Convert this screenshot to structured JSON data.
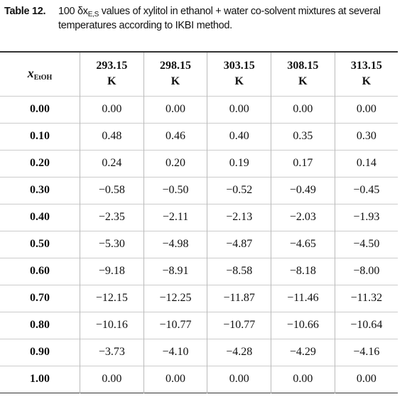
{
  "caption": {
    "label": "Table 12.",
    "prefix": "100 δx",
    "subscript": "E,S",
    "rest": " values of xylitol in ethanol + water co-solvent mixtures at several temperatures according to IKBI method."
  },
  "table": {
    "header": {
      "first": {
        "symbol": "x",
        "subscript": "EtOH"
      },
      "columns": [
        {
          "value": "293.15",
          "unit": "K"
        },
        {
          "value": "298.15",
          "unit": "K"
        },
        {
          "value": "303.15",
          "unit": "K"
        },
        {
          "value": "308.15",
          "unit": "K"
        },
        {
          "value": "313.15",
          "unit": "K"
        }
      ]
    },
    "rows": [
      [
        "0.00",
        "0.00",
        "0.00",
        "0.00",
        "0.00",
        "0.00"
      ],
      [
        "0.10",
        "0.48",
        "0.46",
        "0.40",
        "0.35",
        "0.30"
      ],
      [
        "0.20",
        "0.24",
        "0.20",
        "0.19",
        "0.17",
        "0.14"
      ],
      [
        "0.30",
        "−0.58",
        "−0.50",
        "−0.52",
        "−0.49",
        "−0.45"
      ],
      [
        "0.40",
        "−2.35",
        "−2.11",
        "−2.13",
        "−2.03",
        "−1.93"
      ],
      [
        "0.50",
        "−5.30",
        "−4.98",
        "−4.87",
        "−4.65",
        "−4.50"
      ],
      [
        "0.60",
        "−9.18",
        "−8.91",
        "−8.58",
        "−8.18",
        "−8.00"
      ],
      [
        "0.70",
        "−12.15",
        "−12.25",
        "−11.87",
        "−11.46",
        "−11.32"
      ],
      [
        "0.80",
        "−10.16",
        "−10.77",
        "−10.77",
        "−10.66",
        "−10.64"
      ],
      [
        "0.90",
        "−3.73",
        "−4.10",
        "−4.28",
        "−4.29",
        "−4.16"
      ],
      [
        "1.00",
        "0.00",
        "0.00",
        "0.00",
        "0.00",
        "0.00"
      ]
    ]
  }
}
